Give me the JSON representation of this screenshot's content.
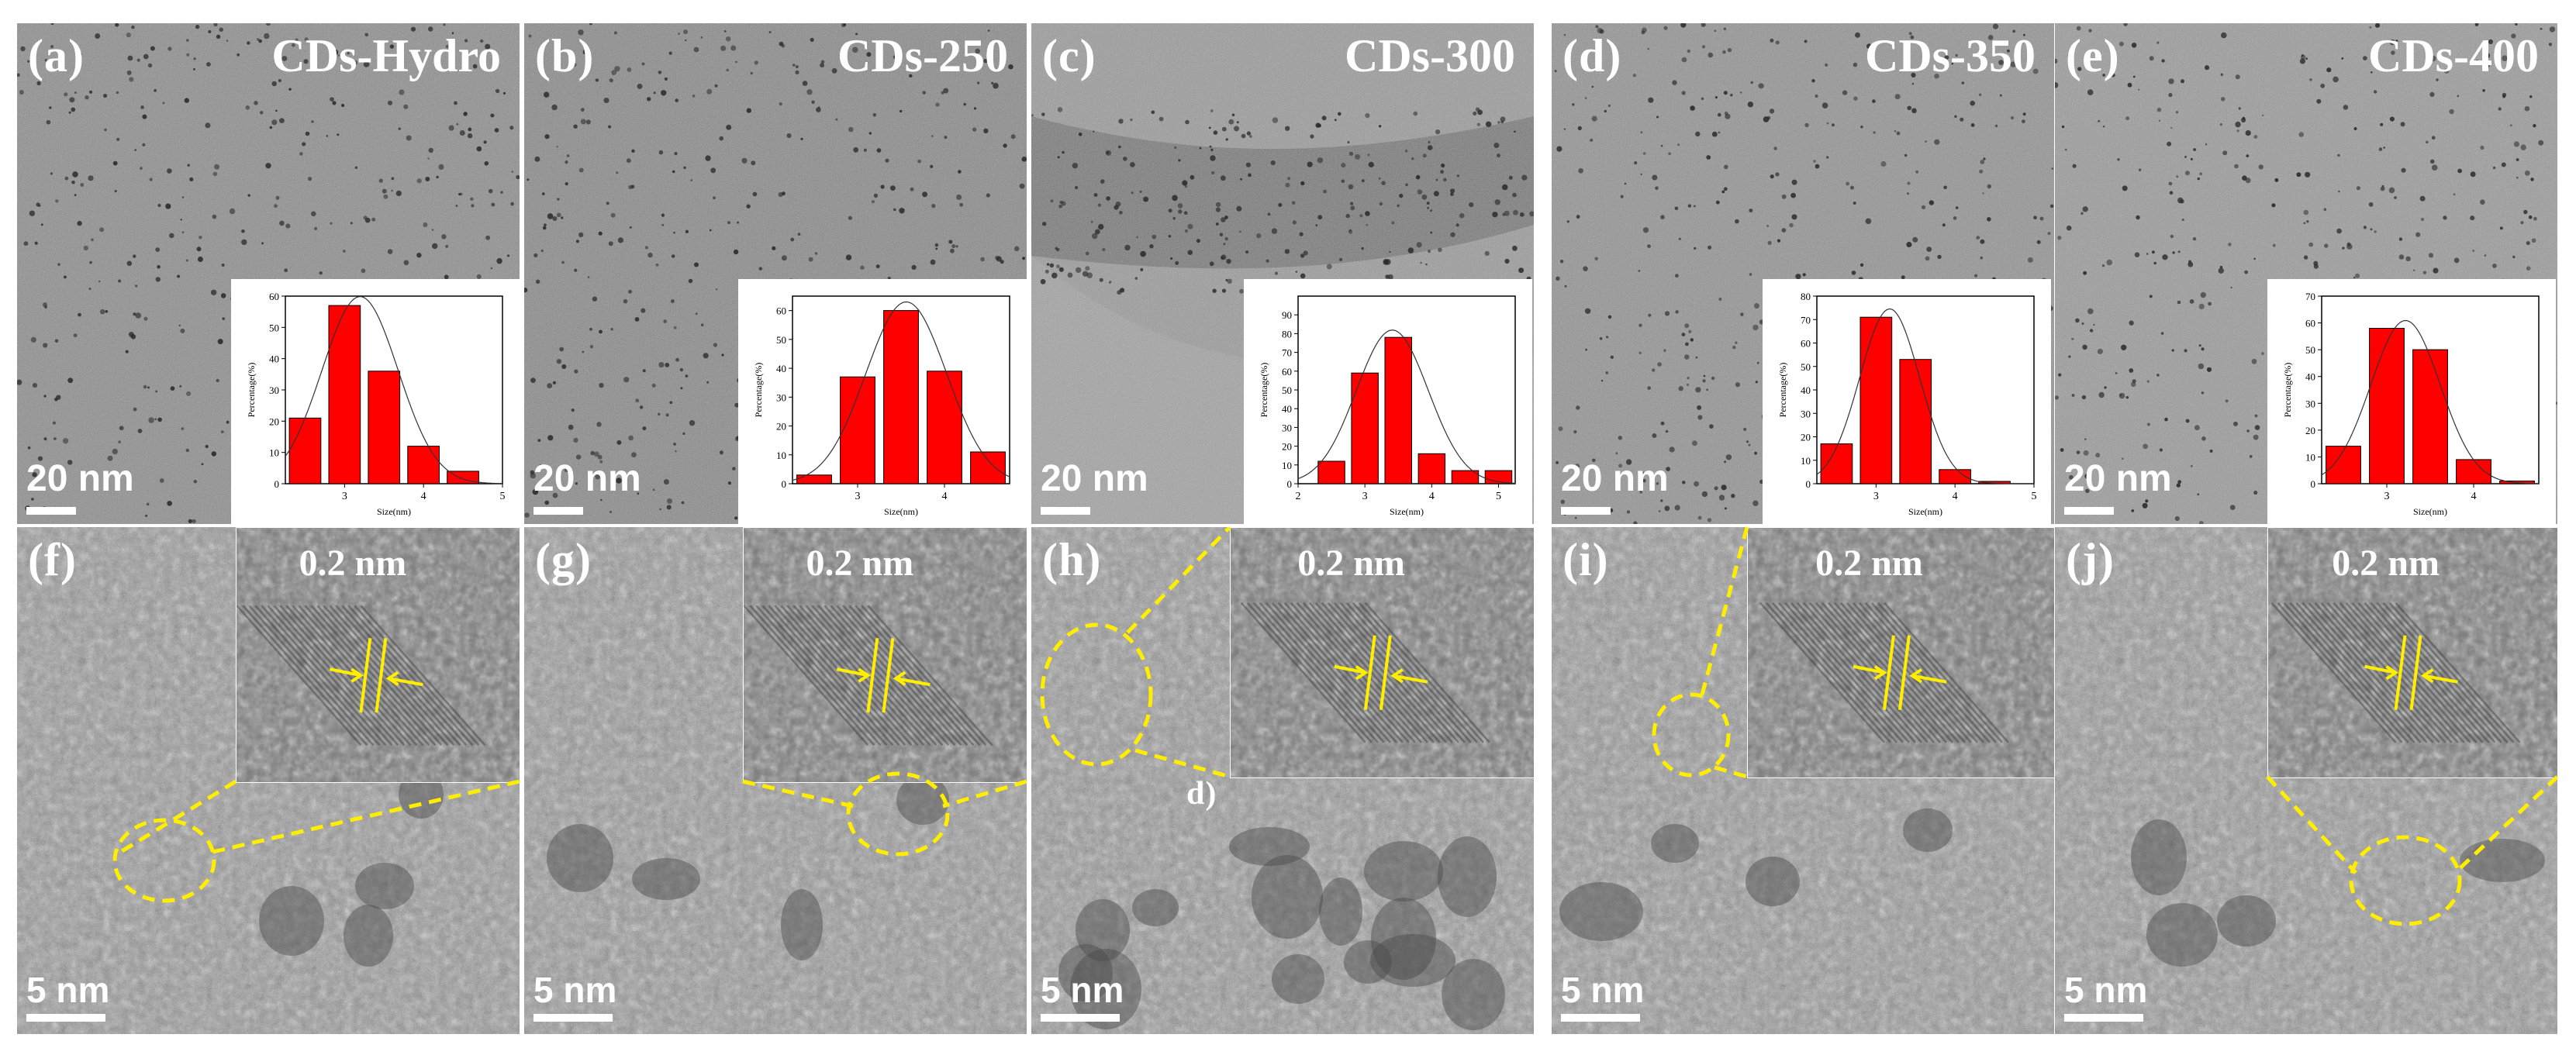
{
  "panels_top": [
    {
      "label": "(a)",
      "title": "CDs-Hydro",
      "scale": "20 nm"
    },
    {
      "label": "(b)",
      "title": "CDs-250",
      "scale": "20 nm"
    },
    {
      "label": "(c)",
      "title": "CDs-300",
      "scale": "20 nm"
    },
    {
      "label": "(d)",
      "title": "CDs-350",
      "scale": "20 nm"
    },
    {
      "label": "(e)",
      "title": "CDs-400",
      "scale": "20 nm"
    }
  ],
  "panels_bottom": [
    {
      "label": "(f)",
      "lattice": "0.2 nm",
      "scale": "5 nm"
    },
    {
      "label": "(g)",
      "lattice": "0.2 nm",
      "scale": "5 nm"
    },
    {
      "label": "(h)",
      "lattice": "0.2 nm",
      "scale": "5 nm",
      "stray_label": "d)"
    },
    {
      "label": "(i)",
      "lattice": "0.2 nm",
      "scale": "5 nm"
    },
    {
      "label": "(j)",
      "lattice": "0.2 nm",
      "scale": "5 nm"
    }
  ],
  "chart_data": [
    {
      "type": "bar",
      "panel": "(a)",
      "xlabel": "Size(nm)",
      "ylabel": "Percentage(%)",
      "x": [
        2.5,
        3,
        3.5,
        4,
        4.5
      ],
      "values": [
        21,
        57,
        36,
        12,
        4
      ],
      "ylim": [
        0,
        60
      ],
      "yticks": [
        0,
        10,
        20,
        30,
        40,
        50,
        60
      ],
      "xticks": [
        "3",
        "4",
        "5"
      ],
      "xlim": [
        2.25,
        5
      ],
      "fit_curve": true
    },
    {
      "type": "bar",
      "panel": "(b)",
      "xlabel": "Size(nm)",
      "ylabel": "Percentage(%)",
      "x": [
        2.5,
        3,
        3.5,
        4,
        4.5
      ],
      "values": [
        3,
        37,
        60,
        39,
        11
      ],
      "ylim": [
        0,
        65
      ],
      "yticks": [
        0,
        10,
        20,
        30,
        40,
        50,
        60
      ],
      "xticks": [
        "3",
        "4"
      ],
      "xlim": [
        2.25,
        4.75
      ],
      "fit_curve": true
    },
    {
      "type": "bar",
      "panel": "(c)",
      "xlabel": "Size(nm)",
      "ylabel": "Percentage(%)",
      "x": [
        2.5,
        3,
        3.5,
        4,
        4.5,
        5
      ],
      "values": [
        12,
        59,
        78,
        16,
        7,
        7
      ],
      "ylim": [
        0,
        100
      ],
      "yticks": [
        0,
        10,
        20,
        30,
        40,
        50,
        60,
        70,
        80,
        90
      ],
      "xticks": [
        "2",
        "3",
        "4",
        "5"
      ],
      "xlim": [
        2,
        5.25
      ],
      "fit_curve": true
    },
    {
      "type": "bar",
      "panel": "(d)",
      "xlabel": "Size(nm)",
      "ylabel": "Percentage(%)",
      "x": [
        2.5,
        3,
        3.5,
        4,
        4.5
      ],
      "values": [
        17,
        71,
        53,
        6,
        1
      ],
      "ylim": [
        0,
        80
      ],
      "yticks": [
        0,
        10,
        20,
        30,
        40,
        50,
        60,
        70,
        80
      ],
      "xticks": [
        "3",
        "4",
        "5"
      ],
      "xlim": [
        2.25,
        5
      ],
      "fit_curve": true
    },
    {
      "type": "bar",
      "panel": "(e)",
      "xlabel": "Size(nm)",
      "ylabel": "Percentage(%)",
      "x": [
        2.5,
        3,
        3.5,
        4,
        4.5
      ],
      "values": [
        14,
        58,
        50,
        9,
        1
      ],
      "ylim": [
        0,
        70
      ],
      "yticks": [
        0,
        10,
        20,
        30,
        40,
        50,
        60,
        70
      ],
      "xticks": [
        "3",
        "4"
      ],
      "xlim": [
        2.25,
        4.75
      ],
      "fit_curve": true
    }
  ],
  "colors": {
    "bar": "#ff0000",
    "annotation": "#ffee00",
    "text": "#ffffff"
  }
}
